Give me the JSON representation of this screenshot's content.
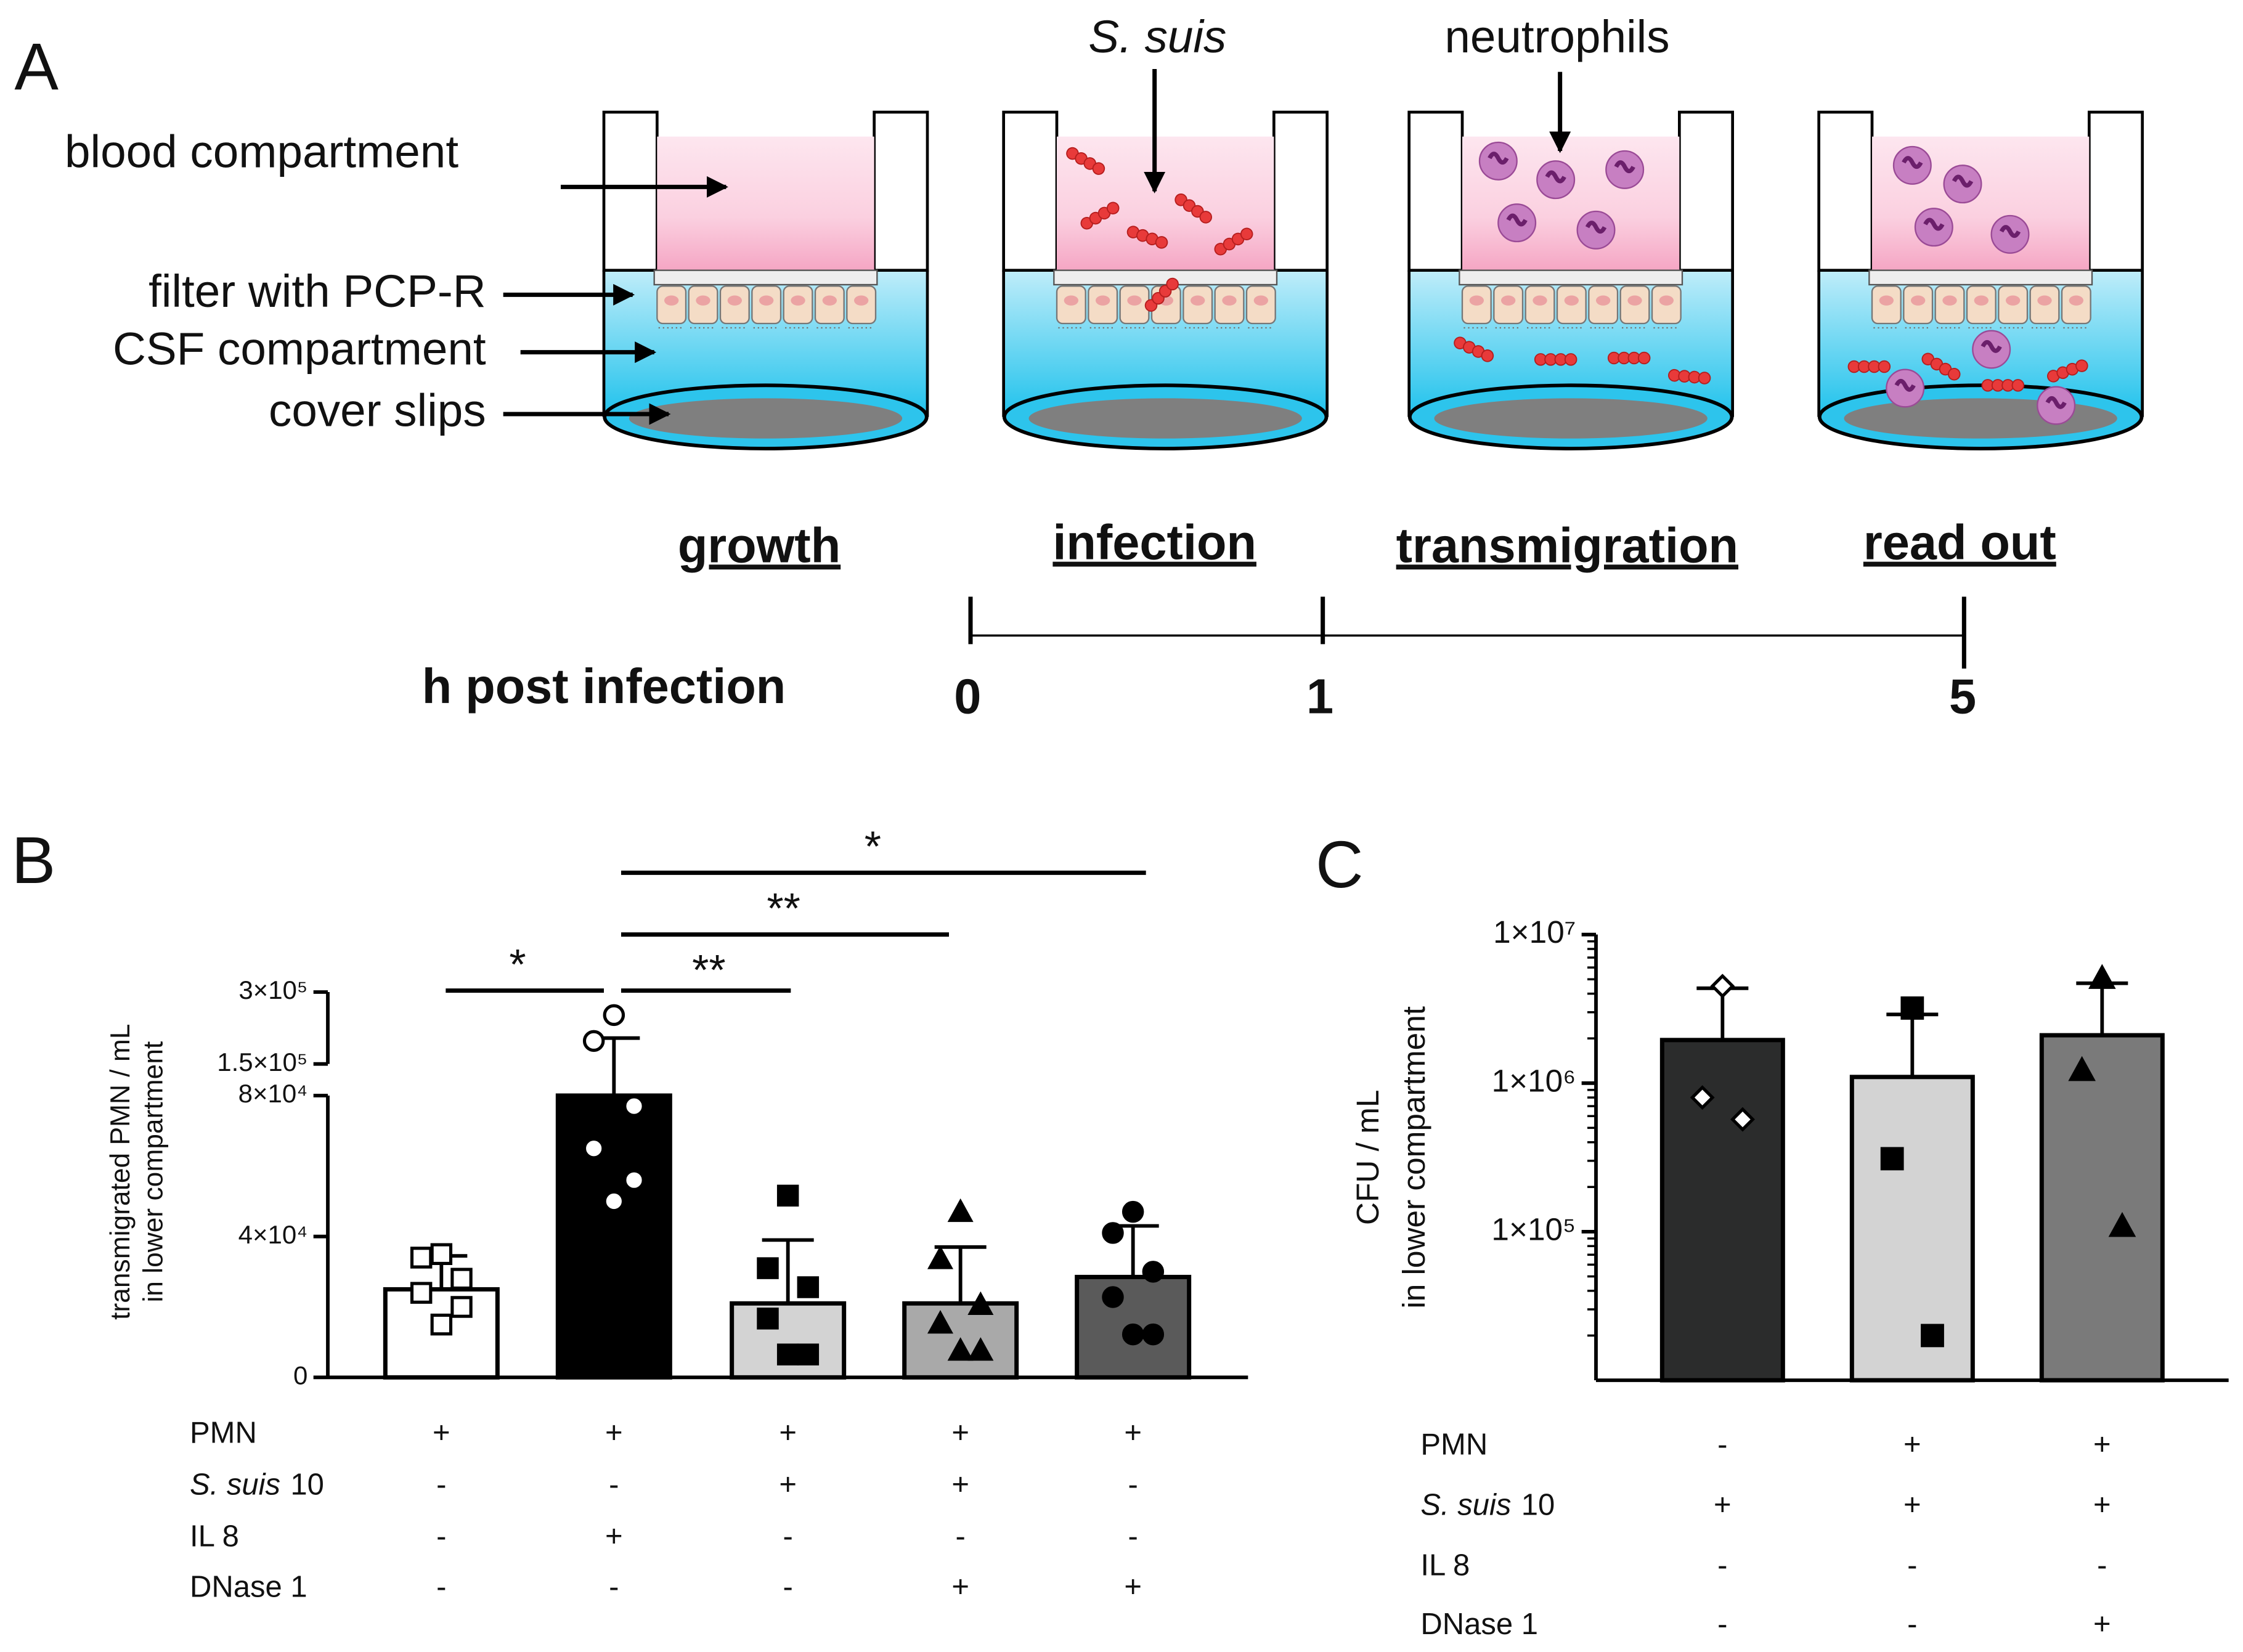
{
  "diagram": {
    "panel": "A",
    "labels": [
      "blood compartment",
      "filter with PCP-R",
      "CSF compartment",
      "cover slips"
    ],
    "bacteria": "S. suis",
    "neutrophils": "neutrophils",
    "stages": [
      "growth",
      "infection",
      "transmigration",
      "read out"
    ],
    "timeline_label": "h post infection",
    "timeline_ticks": [
      "0",
      "1",
      "5"
    ]
  },
  "chart_data": [
    {
      "type": "bar",
      "panel": "B",
      "ylabel": [
        "transmigrated PMN / mL",
        "in lower compartment"
      ],
      "categories": [
        null,
        null,
        null,
        null,
        null
      ],
      "values": [
        25000,
        80000,
        21000,
        21000,
        28500
      ],
      "errors": [
        9500,
        124000,
        18000,
        16000,
        14500
      ],
      "colors": [
        "#ffffff",
        "#000000",
        "#d3d3d3",
        "#a9a9a9",
        "#5a5a5a"
      ],
      "markers": [
        "square-open",
        "circle-open",
        "square",
        "triangle",
        "circle"
      ],
      "points": [
        [
          35000,
          34000,
          28000,
          24000,
          20000,
          15000
        ],
        [
          252000,
          198000,
          77000,
          65000,
          56000,
          50000
        ],
        [
          51600,
          31000,
          25600,
          16700,
          6500,
          6500
        ],
        [
          46700,
          33300,
          20300,
          15000,
          7300,
          7300
        ],
        [
          47000,
          41000,
          30000,
          22800,
          12200,
          12200
        ]
      ],
      "ylim": [
        0,
        300000
      ],
      "ybreak": [
        80000,
        150000
      ],
      "yticks": [
        0,
        {
          "value": 40000,
          "label": "4×10⁴"
        },
        {
          "value": 80000,
          "label": "8×10⁴"
        },
        {
          "value": 150000,
          "label": "1.5×10⁵"
        },
        {
          "value": 300000,
          "label": "3×10⁵"
        }
      ],
      "annotations": [
        {
          "label": "*"
        },
        {
          "label": "**"
        },
        {
          "label": "**"
        },
        {
          "label": "*"
        }
      ],
      "conditions": [
        {
          "label": "PMN",
          "values": [
            "+",
            "+",
            "+",
            "+",
            "+"
          ]
        },
        {
          "italic": "S. suis",
          "label": "10",
          "values": [
            "-",
            "-",
            "+",
            "+",
            "-"
          ]
        },
        {
          "label": "IL 8",
          "values": [
            "-",
            "+",
            "-",
            "-",
            "-"
          ]
        },
        {
          "label": "DNase 1",
          "values": [
            "-",
            "-",
            "-",
            "+",
            "+"
          ]
        }
      ]
    },
    {
      "type": "bar",
      "panel": "C",
      "log_scale": true,
      "minor_ticks": true,
      "ylabel": [
        "CFU / mL",
        "in lower compartment"
      ],
      "categories": [
        null,
        null,
        null
      ],
      "values": [
        1950000,
        1100000,
        2100000
      ],
      "errors": [
        2400000,
        1800000,
        2600000
      ],
      "colors": [
        "#2b2c2c",
        "#d3d3d3",
        "#7a7a7a"
      ],
      "markers": [
        "diamond-open",
        "square",
        "triangle"
      ],
      "points": [
        [
          4500000,
          800000,
          570000
        ],
        [
          3200000,
          310000,
          20000
        ],
        [
          5000000,
          1200000,
          107000
        ]
      ],
      "ylim": [
        10000,
        10000000
      ],
      "yticks": [
        {
          "value": 100000,
          "label": "1×10⁵"
        },
        {
          "value": 1000000,
          "label": "1×10⁶"
        },
        {
          "value": 10000000,
          "label": "1×10⁷"
        }
      ],
      "conditions": [
        {
          "label": "PMN",
          "values": [
            "-",
            "+",
            "+"
          ]
        },
        {
          "italic": "S. suis",
          "label": "10",
          "values": [
            "+",
            "+",
            "+"
          ]
        },
        {
          "label": "IL 8",
          "values": [
            "-",
            "-",
            "-"
          ]
        },
        {
          "label": "DNase 1",
          "values": [
            "-",
            "-",
            "+"
          ]
        }
      ]
    }
  ]
}
